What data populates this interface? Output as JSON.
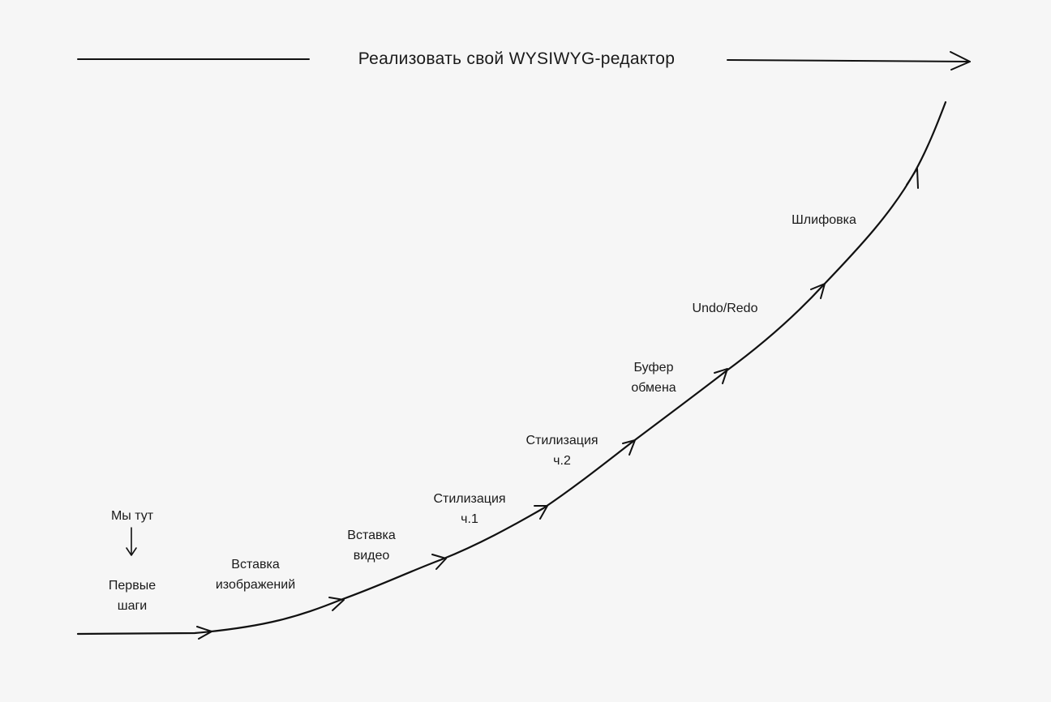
{
  "title": "Реализовать свой WYSIWYG-редактор",
  "current_marker": "Мы тут",
  "milestones": [
    {
      "lines": [
        "Первые",
        "шаги"
      ]
    },
    {
      "lines": [
        "Вставка",
        "изображений"
      ]
    },
    {
      "lines": [
        "Вставка",
        "видео"
      ]
    },
    {
      "lines": [
        "Стилизация",
        "ч.1"
      ]
    },
    {
      "lines": [
        "Стилизация",
        "ч.2"
      ]
    },
    {
      "lines": [
        "Буфер",
        "обмена"
      ]
    },
    {
      "lines": [
        "Undo/Redo"
      ]
    },
    {
      "lines": [
        "Шлифовка"
      ]
    }
  ]
}
